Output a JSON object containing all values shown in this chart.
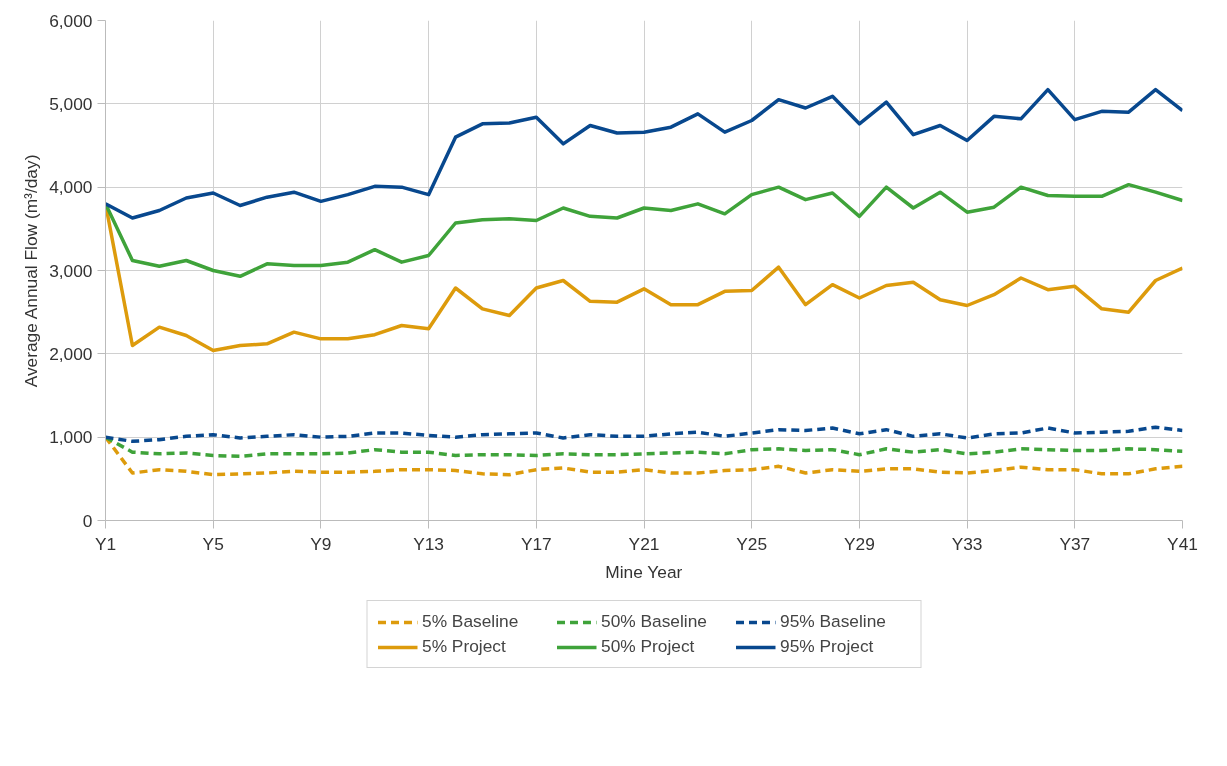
{
  "chart_data": {
    "type": "line",
    "xlabel": "Mine Year",
    "ylabel": "Average Annual Flow (m³/day)",
    "categories": [
      "Y1",
      null,
      null,
      null,
      "Y5",
      null,
      null,
      null,
      "Y9",
      null,
      null,
      null,
      "Y13",
      null,
      null,
      null,
      "Y17",
      null,
      null,
      null,
      "Y21",
      null,
      null,
      null,
      "Y25",
      null,
      null,
      null,
      "Y29",
      null,
      null,
      null,
      "Y33",
      null,
      null,
      null,
      "Y37",
      null,
      null,
      null,
      "Y41"
    ],
    "ylim": [
      0,
      6000
    ],
    "yticks": [
      {
        "value": 0,
        "label": "0"
      },
      {
        "value": 1000,
        "label": "1,000"
      },
      {
        "value": 2000,
        "label": "2,000"
      },
      {
        "value": 3000,
        "label": "3,000"
      },
      {
        "value": 4000,
        "label": "4,000"
      },
      {
        "value": 5000,
        "label": "5,000"
      },
      {
        "value": 6000,
        "label": "6,000"
      }
    ],
    "grid": true,
    "legend": "bottom",
    "marker": "none",
    "series": [
      {
        "name": "5% Baseline",
        "color": "#dd9b0c",
        "line_style": "dashed",
        "values": [
          1000,
          570,
          610,
          590,
          550,
          560,
          570,
          590,
          580,
          580,
          590,
          610,
          610,
          600,
          560,
          550,
          610,
          630,
          580,
          580,
          610,
          570,
          570,
          600,
          610,
          650,
          570,
          610,
          590,
          620,
          620,
          580,
          570,
          600,
          640,
          610,
          610,
          560,
          560,
          620,
          650
        ]
      },
      {
        "name": "50% Baseline",
        "color": "#3fa33a",
        "line_style": "dashed",
        "values": [
          1000,
          820,
          800,
          810,
          780,
          770,
          800,
          800,
          800,
          810,
          850,
          820,
          820,
          780,
          790,
          790,
          780,
          800,
          790,
          790,
          800,
          810,
          820,
          800,
          850,
          860,
          840,
          850,
          790,
          860,
          820,
          850,
          800,
          820,
          860,
          850,
          840,
          840,
          860,
          850,
          830
        ]
      },
      {
        "name": "95% Baseline",
        "color": "#08488e",
        "line_style": "dashed",
        "values": [
          1000,
          950,
          970,
          1010,
          1030,
          990,
          1010,
          1030,
          1000,
          1010,
          1050,
          1050,
          1020,
          1000,
          1030,
          1040,
          1050,
          990,
          1030,
          1010,
          1010,
          1040,
          1060,
          1010,
          1050,
          1090,
          1080,
          1110,
          1040,
          1090,
          1010,
          1040,
          990,
          1040,
          1050,
          1110,
          1050,
          1060,
          1070,
          1120,
          1080
        ]
      },
      {
        "name": "5% Project",
        "color": "#dd9b0c",
        "line_style": "solid",
        "values": [
          3800,
          2100,
          2320,
          2220,
          2040,
          2100,
          2120,
          2260,
          2180,
          2180,
          2230,
          2340,
          2300,
          2790,
          2540,
          2460,
          2790,
          2880,
          2630,
          2620,
          2780,
          2590,
          2590,
          2750,
          2760,
          3040,
          2590,
          2830,
          2670,
          2820,
          2860,
          2650,
          2580,
          2710,
          2910,
          2770,
          2810,
          2540,
          2500,
          2880,
          3030
        ]
      },
      {
        "name": "50% Project",
        "color": "#3fa33a",
        "line_style": "solid",
        "values": [
          3800,
          3120,
          3050,
          3120,
          3000,
          2930,
          3080,
          3060,
          3060,
          3100,
          3250,
          3100,
          3180,
          3570,
          3610,
          3620,
          3600,
          3750,
          3650,
          3630,
          3750,
          3720,
          3800,
          3680,
          3910,
          4000,
          3850,
          3930,
          3650,
          4000,
          3750,
          3940,
          3700,
          3760,
          4000,
          3900,
          3890,
          3890,
          4030,
          3940,
          3840
        ]
      },
      {
        "name": "95% Project",
        "color": "#08488e",
        "line_style": "solid",
        "values": [
          3800,
          3630,
          3720,
          3870,
          3930,
          3780,
          3880,
          3940,
          3830,
          3910,
          4010,
          4000,
          3910,
          4600,
          4760,
          4770,
          4840,
          4520,
          4740,
          4650,
          4660,
          4720,
          4880,
          4660,
          4800,
          5050,
          4950,
          5090,
          4760,
          5020,
          4630,
          4740,
          4560,
          4850,
          4820,
          5170,
          4810,
          4910,
          4900,
          5170,
          4920
        ]
      }
    ]
  }
}
